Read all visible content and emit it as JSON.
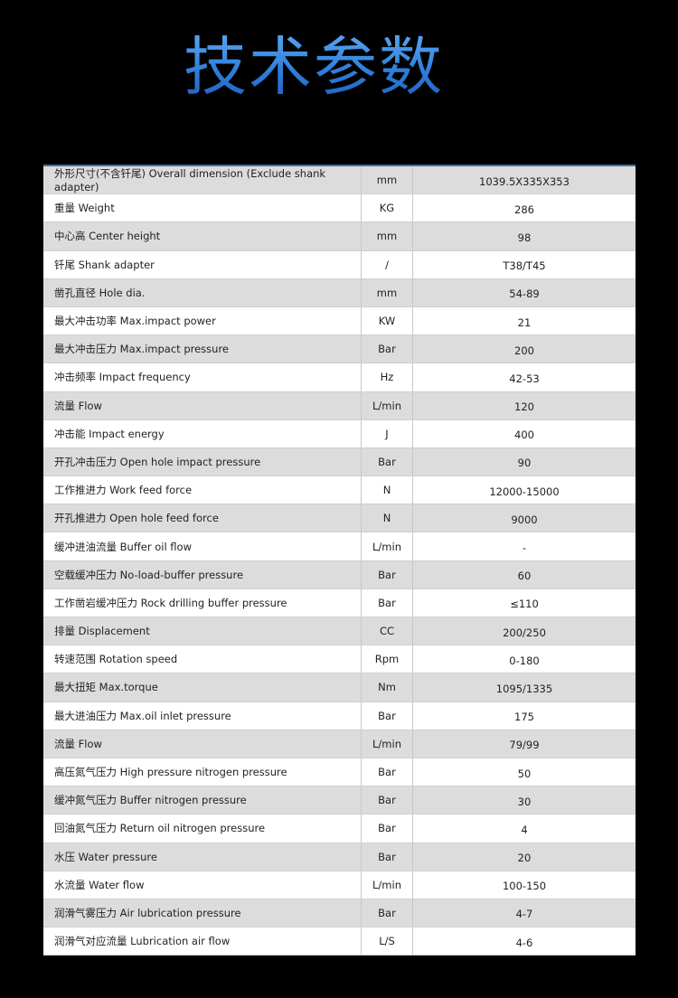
{
  "title": "技术参数",
  "rows": [
    {
      "name": "外形尺寸(不含钎尾) Overall dimension (Exclude shank adapter)",
      "unit": "mm",
      "value": "1039.5X335X353"
    },
    {
      "name": "重量 Weight",
      "unit": "KG",
      "value": "286"
    },
    {
      "name": "中心高 Center height",
      "unit": "mm",
      "value": "98"
    },
    {
      "name": "钎尾 Shank adapter",
      "unit": "/",
      "value": "T38/T45"
    },
    {
      "name": "凿孔直径 Hole dia.",
      "unit": "mm",
      "value": "54-89"
    },
    {
      "name": "最大冲击功率 Max.impact power",
      "unit": "KW",
      "value": "21"
    },
    {
      "name": "最大冲击压力 Max.impact pressure",
      "unit": "Bar",
      "value": "200"
    },
    {
      "name": "冲击频率 Impact frequency",
      "unit": "Hz",
      "value": "42-53"
    },
    {
      "name": "流量 Flow",
      "unit": "L/min",
      "value": "120"
    },
    {
      "name": "冲击能 Impact energy",
      "unit": "J",
      "value": "400"
    },
    {
      "name": "开孔冲击压力 Open hole impact pressure",
      "unit": "Bar",
      "value": "90"
    },
    {
      "name": "工作推进力 Work feed force",
      "unit": "N",
      "value": "12000-15000"
    },
    {
      "name": "开孔推进力 Open hole feed force",
      "unit": "N",
      "value": "9000"
    },
    {
      "name": "缓冲进油流量 Buffer oil flow",
      "unit": "L/min",
      "value": "-"
    },
    {
      "name": "空载缓冲压力 No-load-buffer pressure",
      "unit": "Bar",
      "value": "60"
    },
    {
      "name": "工作凿岩缓冲压力 Rock drilling buffer pressure",
      "unit": "Bar",
      "value": "≤110"
    },
    {
      "name": "排量 Displacement",
      "unit": "CC",
      "value": "200/250"
    },
    {
      "name": "转速范围 Rotation speed",
      "unit": "Rpm",
      "value": "0-180"
    },
    {
      "name": "最大扭矩 Max.torque",
      "unit": "Nm",
      "value": "1095/1335"
    },
    {
      "name": "最大进油压力 Max.oil inlet pressure",
      "unit": "Bar",
      "value": "175"
    },
    {
      "name": "流量 Flow",
      "unit": "L/min",
      "value": "79/99"
    },
    {
      "name": "高压氮气压力 High pressure nitrogen pressure",
      "unit": "Bar",
      "value": "50"
    },
    {
      "name": "缓冲氮气压力 Buffer nitrogen pressure",
      "unit": "Bar",
      "value": "30"
    },
    {
      "name": "回油氮气压力 Return oil  nitrogen pressure",
      "unit": "Bar",
      "value": "4"
    },
    {
      "name": "水压 Water pressure",
      "unit": "Bar",
      "value": "20"
    },
    {
      "name": "水流量 Water flow",
      "unit": "L/min",
      "value": "100-150"
    },
    {
      "name": "润滑气雾压力 Air lubrication pressure",
      "unit": "Bar",
      "value": "4-7"
    },
    {
      "name": "润滑气对应流量 Lubrication air flow",
      "unit": "L/S",
      "value": "4-6"
    }
  ]
}
